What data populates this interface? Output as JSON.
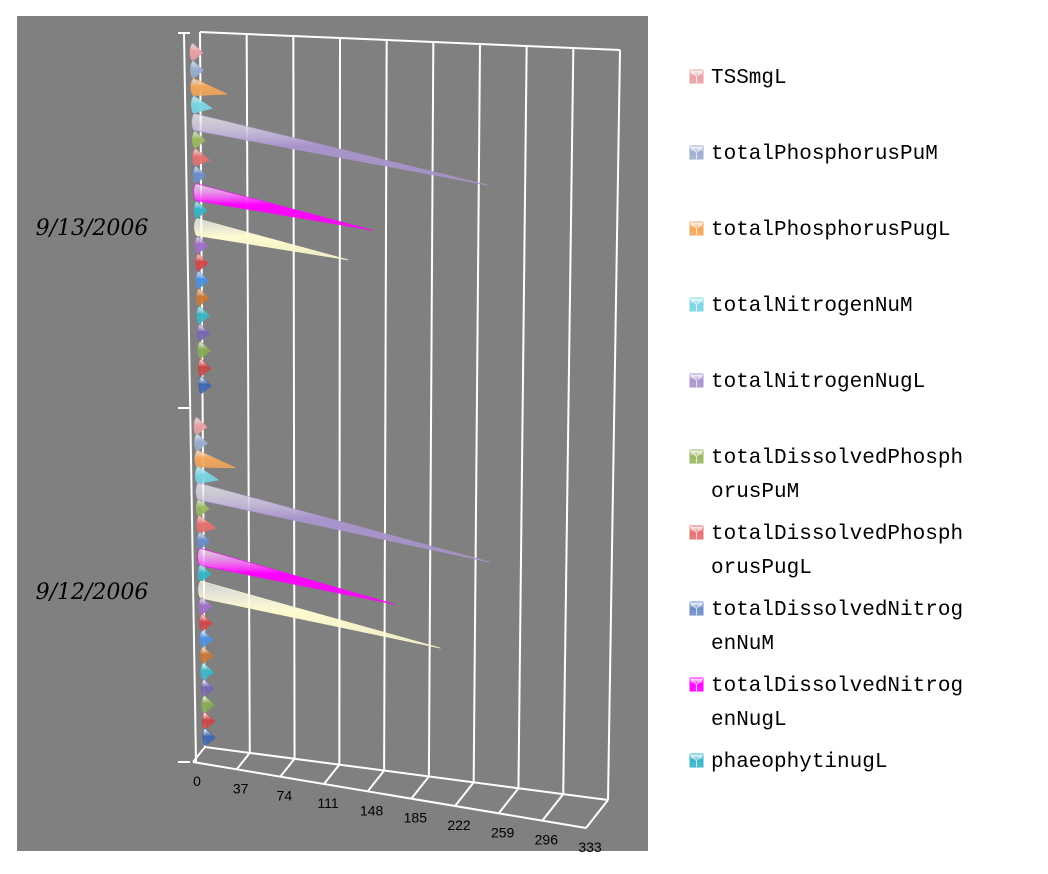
{
  "chart_data": {
    "type": "bar",
    "orientation": "horizontal",
    "three_d": true,
    "bar_shape": "cone",
    "categories": [
      "9/13/2006",
      "9/12/2006"
    ],
    "x_ticks": [
      "0",
      "37",
      "74",
      "111",
      "148",
      "185",
      "222",
      "259",
      "296",
      "333"
    ],
    "xlim": [
      0,
      333
    ],
    "grid": true,
    "legend_position": "right",
    "series": [
      {
        "name": "TSSmgL",
        "color": "#e8a0a4",
        "values": [
          3,
          3
        ]
      },
      {
        "name": "totalPhosphorusPuM",
        "color": "#9aaed0",
        "values": [
          1,
          1
        ]
      },
      {
        "name": "totalPhosphorusPugL",
        "color": "#f2a65a",
        "values": [
          28,
          32
        ]
      },
      {
        "name": "totalNitrogenNuM",
        "color": "#7ad4e4",
        "values": [
          15,
          17
        ]
      },
      {
        "name": "totalNitrogenNugL",
        "color": "#a894cc",
        "values": [
          247,
          248
        ]
      },
      {
        "name": "totalDissolvedPhosphorusPuM",
        "color": "#9ab860",
        "values": [
          1,
          1
        ]
      },
      {
        "name": "totalDissolvedPhosphorusPugL",
        "color": "#e47070",
        "values": [
          12,
          14
        ]
      },
      {
        "name": "totalDissolvedNitrogenNuM",
        "color": "#6c8cc8",
        "values": [
          7,
          8
        ]
      },
      {
        "name": "totalDissolvedNitrogenNugL",
        "color": "#ff00ff",
        "values": [
          150,
          166
        ]
      },
      {
        "name": "phaeophytinugL",
        "color": "#36b4c8",
        "values": [
          1,
          1
        ]
      },
      {
        "name": "",
        "color": "#fffbd0",
        "values": [
          128,
          205
        ]
      },
      {
        "name": "",
        "color": "#a070c8",
        "values": [
          4,
          4
        ]
      },
      {
        "name": "",
        "color": "#d0484c",
        "values": [
          1,
          1
        ]
      },
      {
        "name": "",
        "color": "#4e90e0",
        "values": [
          5,
          5
        ]
      },
      {
        "name": "",
        "color": "#c87838",
        "values": [
          1,
          1
        ]
      },
      {
        "name": "",
        "color": "#3cb4c4",
        "values": [
          4,
          4
        ]
      },
      {
        "name": "",
        "color": "#7a68b0",
        "values": [
          2,
          2
        ]
      },
      {
        "name": "",
        "color": "#88a858",
        "values": [
          1,
          1
        ]
      },
      {
        "name": "",
        "color": "#c84848",
        "values": [
          2,
          2
        ]
      },
      {
        "name": "",
        "color": "#4068b0",
        "values": [
          1,
          1
        ]
      }
    ],
    "legend_lines": [
      [
        "TSSmgL"
      ],
      [
        "totalPhosphorusPuM"
      ],
      [
        "totalPhosphorusPugL"
      ],
      [
        "totalNitrogenNuM"
      ],
      [
        "totalNitrogenNugL"
      ],
      [
        "totalDissolvedPhosph",
        "orusPuM"
      ],
      [
        "totalDissolvedPhosph",
        "orusPugL"
      ],
      [
        "totalDissolvedNitrog",
        "enNuM"
      ],
      [
        "totalDissolvedNitrog",
        "enNugL"
      ],
      [
        "phaeophytinugL"
      ]
    ]
  }
}
